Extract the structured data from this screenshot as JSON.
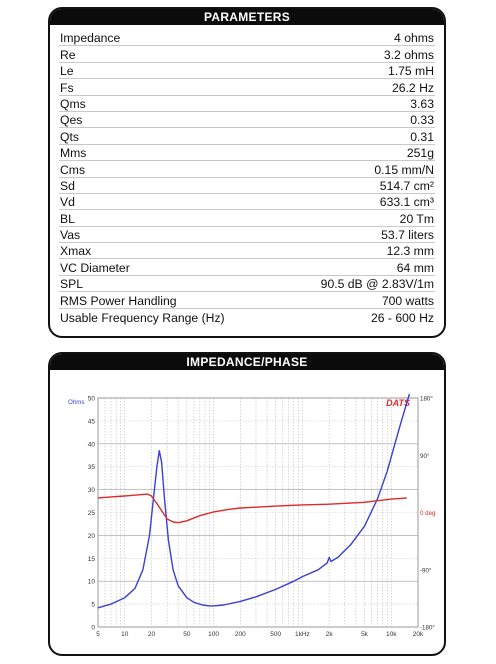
{
  "parameters": {
    "title": "PARAMETERS",
    "rows": [
      {
        "label": "Impedance",
        "value": "4 ohms"
      },
      {
        "label": "Re",
        "value": "3.2 ohms"
      },
      {
        "label": "Le",
        "value": "1.75 mH"
      },
      {
        "label": "Fs",
        "value": "26.2 Hz"
      },
      {
        "label": "Qms",
        "value": "3.63"
      },
      {
        "label": "Qes",
        "value": "0.33"
      },
      {
        "label": "Qts",
        "value": "0.31"
      },
      {
        "label": "Mms",
        "value": "251g"
      },
      {
        "label": "Cms",
        "value": "0.15 mm/N"
      },
      {
        "label": "Sd",
        "value": "514.7 cm²"
      },
      {
        "label": "Vd",
        "value": "633.1 cm³"
      },
      {
        "label": "BL",
        "value": "20 Tm"
      },
      {
        "label": "Vas",
        "value": "53.7 liters"
      },
      {
        "label": "Xmax",
        "value": "12.3 mm"
      },
      {
        "label": "VC Diameter",
        "value": "64 mm"
      },
      {
        "label": "SPL",
        "value": "90.5 dB @ 2.83V/1m"
      },
      {
        "label": "RMS Power Handling",
        "value": "700 watts"
      },
      {
        "label": "Usable Frequency Range (Hz)",
        "value": "26 - 600 Hz"
      }
    ]
  },
  "impedance_panel": {
    "title": "IMPEDANCE/PHASE",
    "brand": "DATS"
  },
  "colors": {
    "impedance": "#3a3fd6",
    "phase": "#dd2a2a",
    "header": "#0b0b0b"
  },
  "chart_data": {
    "type": "line",
    "x_scale": "log",
    "xlim": [
      5,
      20000
    ],
    "x_ticks": [
      "5",
      "10",
      "20",
      "50",
      "100",
      "200",
      "500",
      "1kHz",
      "2k",
      "5k",
      "10k",
      "20k"
    ],
    "x_tick_values": [
      5,
      10,
      20,
      50,
      100,
      200,
      500,
      1000,
      2000,
      5000,
      10000,
      20000
    ],
    "ylim_left": [
      0,
      50
    ],
    "y_left_unit": "Ohms",
    "y_left_ticks": [
      "0",
      "5",
      "10",
      "15",
      "20",
      "25",
      "30",
      "35",
      "40",
      "45",
      "50"
    ],
    "y_left_tick_values": [
      0,
      5,
      10,
      15,
      20,
      25,
      30,
      35,
      40,
      45,
      50
    ],
    "ylim_right": [
      -180,
      180
    ],
    "y_right_ticks": [
      "180°",
      "90°",
      "0 deg",
      "-90°",
      "-180°"
    ],
    "y_right_tick_values": [
      180,
      90,
      0,
      -90,
      -180
    ],
    "grid": true,
    "series": [
      {
        "axis": "left",
        "points": [
          [
            5,
            4.2
          ],
          [
            7,
            5.0
          ],
          [
            10,
            6.4
          ],
          [
            13,
            8.4
          ],
          [
            16,
            12.5
          ],
          [
            19,
            20
          ],
          [
            21,
            28
          ],
          [
            23,
            35
          ],
          [
            24.5,
            38.5
          ],
          [
            26,
            36
          ],
          [
            28,
            28
          ],
          [
            31,
            19
          ],
          [
            35,
            12.5
          ],
          [
            40,
            9.0
          ],
          [
            50,
            6.4
          ],
          [
            60,
            5.4
          ],
          [
            75,
            4.8
          ],
          [
            90,
            4.6
          ],
          [
            100,
            4.6
          ],
          [
            130,
            4.8
          ],
          [
            200,
            5.6
          ],
          [
            300,
            6.6
          ],
          [
            500,
            8.2
          ],
          [
            800,
            10.0
          ],
          [
            1000,
            11.0
          ],
          [
            1500,
            12.5
          ],
          [
            1900,
            14.0
          ],
          [
            2000,
            15.2
          ],
          [
            2100,
            14.3
          ],
          [
            2500,
            15.2
          ],
          [
            3500,
            18.0
          ],
          [
            5000,
            22.0
          ],
          [
            7000,
            28.0
          ],
          [
            9000,
            34.0
          ],
          [
            11000,
            40.0
          ],
          [
            13000,
            45.0
          ],
          [
            15000,
            49.0
          ],
          [
            16000,
            51.0
          ]
        ]
      },
      {
        "axis": "right",
        "points": [
          [
            5,
            23
          ],
          [
            8,
            25
          ],
          [
            10,
            26
          ],
          [
            15,
            28
          ],
          [
            18,
            29
          ],
          [
            20,
            26
          ],
          [
            23,
            14
          ],
          [
            26,
            3
          ],
          [
            30,
            -10
          ],
          [
            35,
            -15
          ],
          [
            40,
            -16
          ],
          [
            50,
            -13
          ],
          [
            70,
            -5
          ],
          [
            100,
            1
          ],
          [
            150,
            5
          ],
          [
            200,
            7
          ],
          [
            500,
            10
          ],
          [
            1000,
            12
          ],
          [
            2000,
            13
          ],
          [
            5000,
            16
          ],
          [
            10000,
            21
          ],
          [
            15000,
            23
          ]
        ]
      }
    ]
  }
}
